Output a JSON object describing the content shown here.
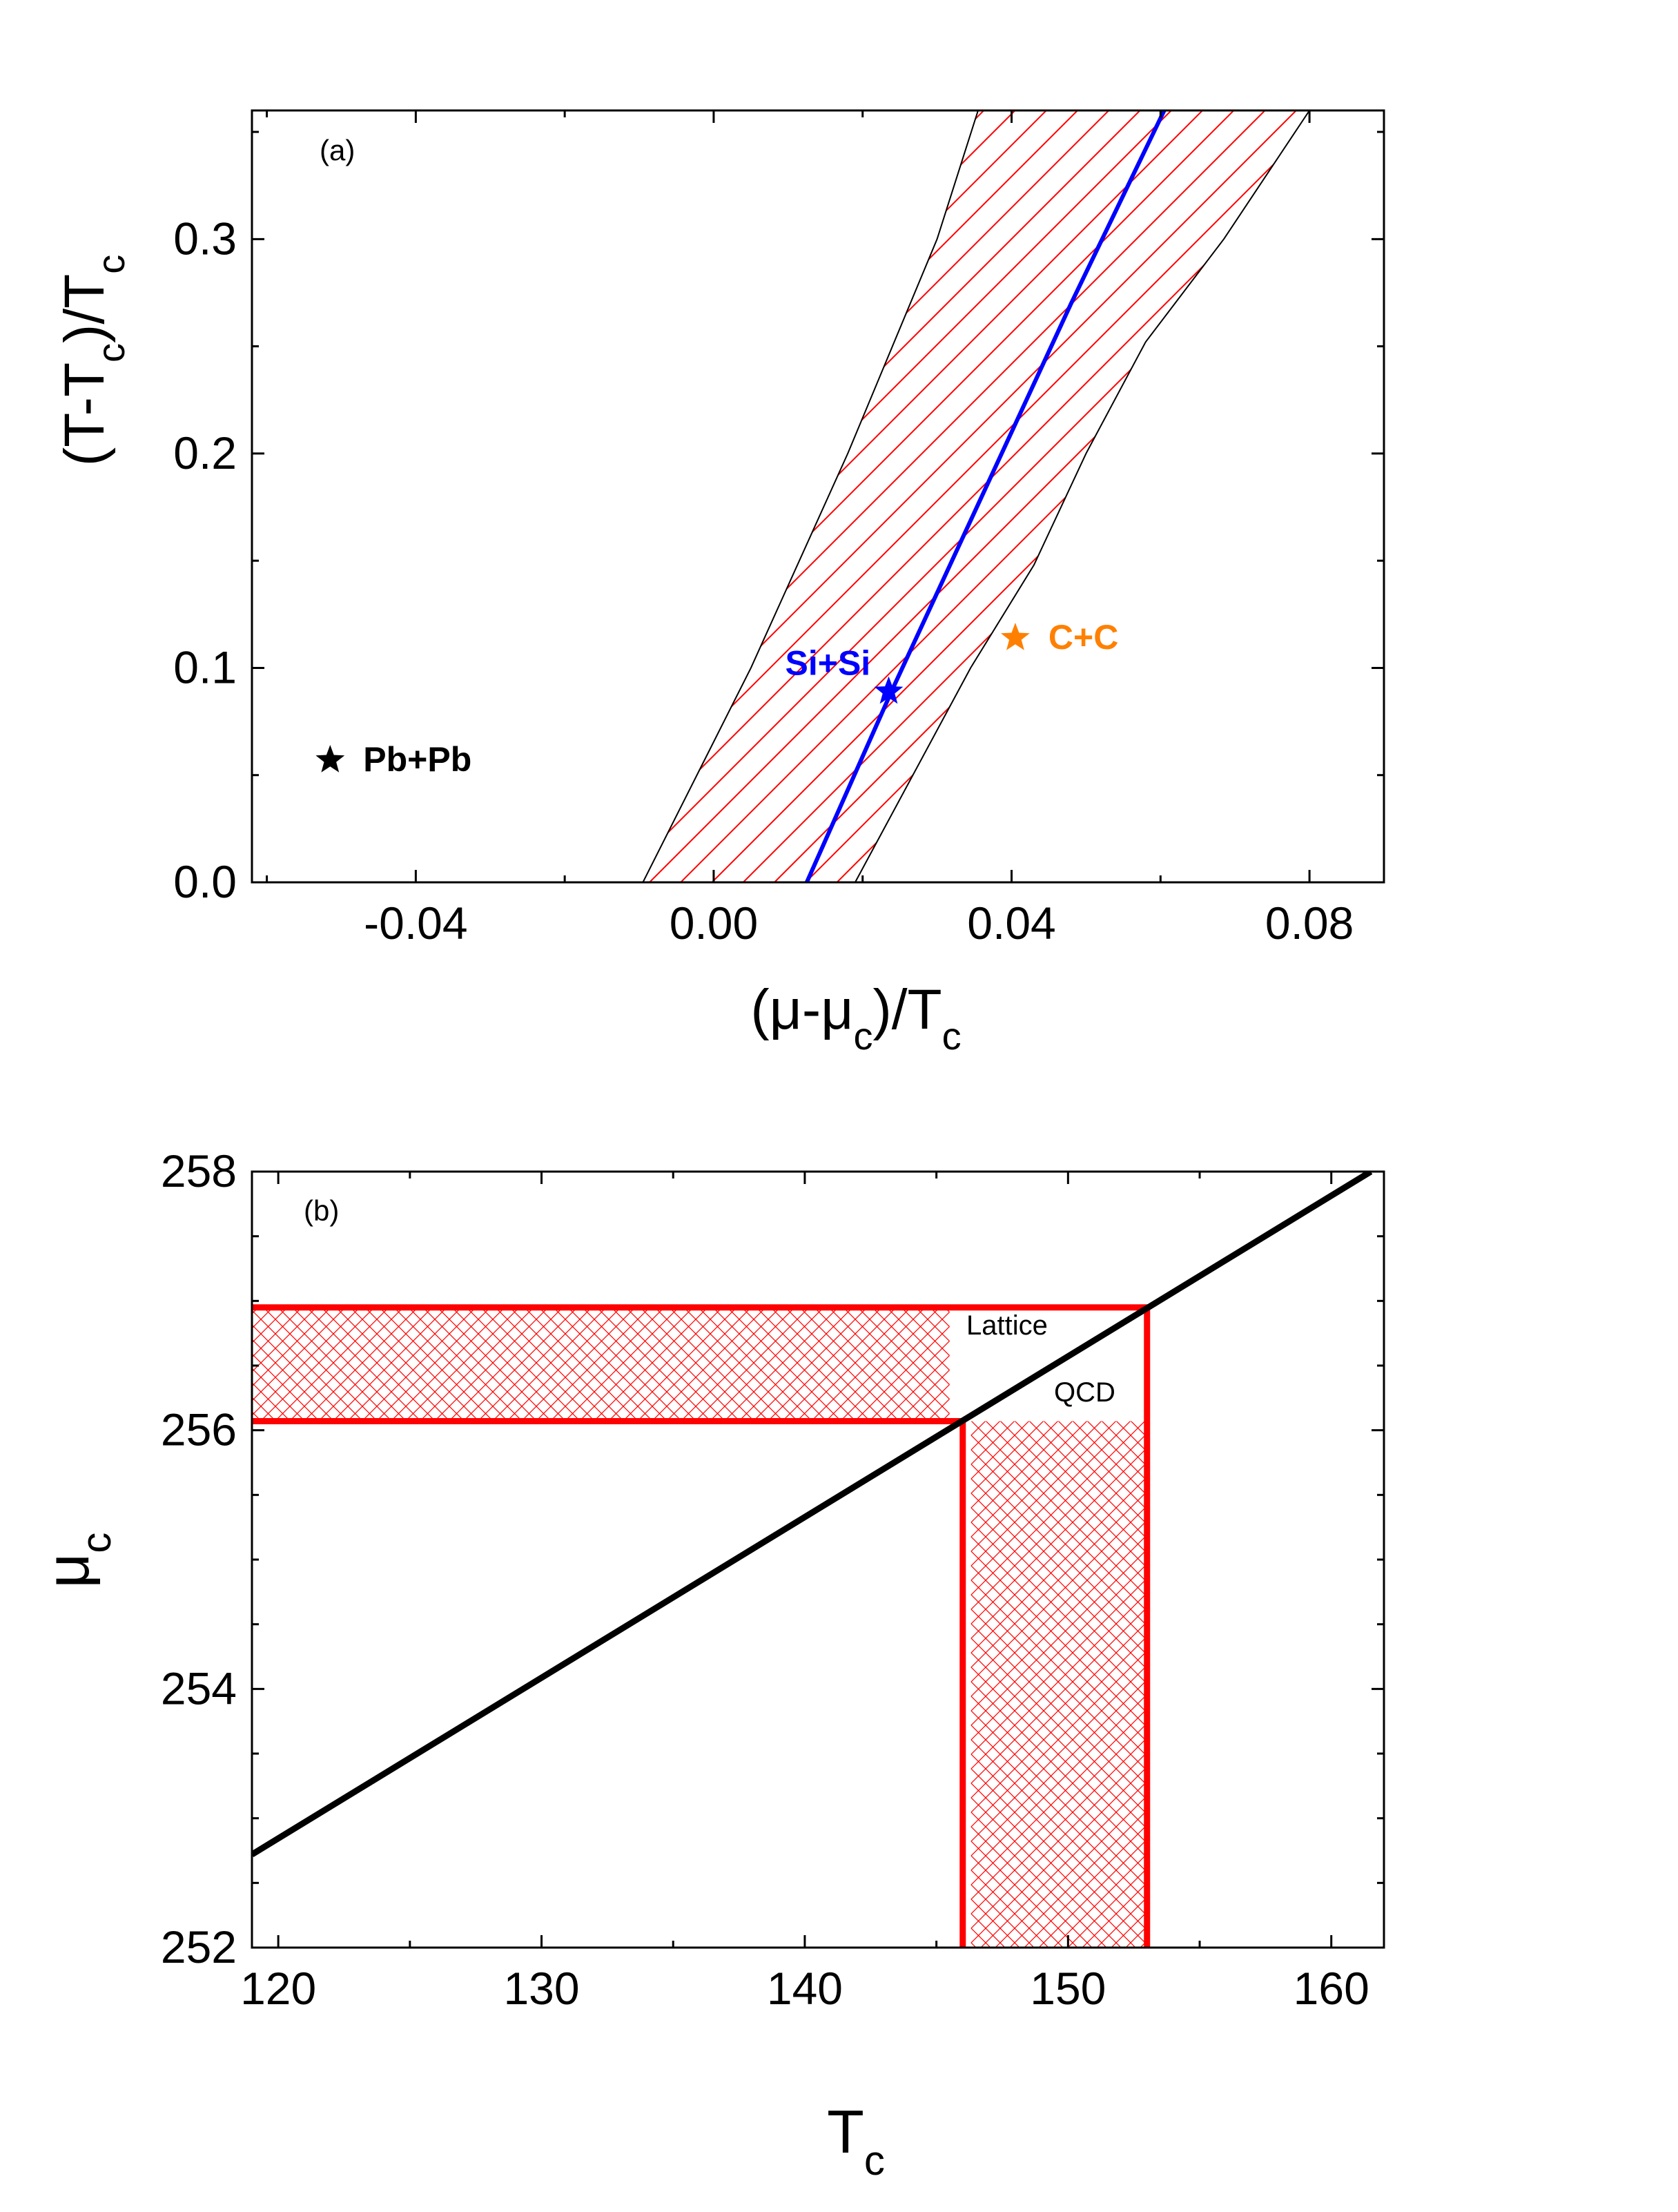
{
  "colors": {
    "red": "#ff0000",
    "blue": "#0000ff",
    "orange": "#ff8000",
    "black": "#000000"
  },
  "chart_data": [
    {
      "type": "line",
      "panel_label": "(a)",
      "xlabel": {
        "main": "(μ-μ",
        "sub": "c",
        "after": ")/T",
        "sub2": "c"
      },
      "ylabel": {
        "main": "(T-T",
        "sub": "c",
        "after": ")/T",
        "sub2": "c"
      },
      "xlim": [
        -0.062,
        0.09
      ],
      "ylim": [
        0,
        0.36
      ],
      "xticks": [
        -0.04,
        0.0,
        0.04,
        0.08
      ],
      "xtick_labels": [
        "-0.04",
        "0.00",
        "0.04",
        "0.08"
      ],
      "yticks": [
        0.0,
        0.1,
        0.2,
        0.3
      ],
      "ytick_labels": [
        "0.0",
        "0.1",
        "0.2",
        "0.3"
      ],
      "band": {
        "left": [
          [
            -0.0095,
            0.0
          ],
          [
            0.005,
            0.1
          ],
          [
            0.018,
            0.2
          ],
          [
            0.03,
            0.3
          ],
          [
            0.0355,
            0.36
          ]
        ],
        "right": [
          [
            0.019,
            0.0
          ],
          [
            0.0345,
            0.1
          ],
          [
            0.043,
            0.148
          ],
          [
            0.05,
            0.2
          ],
          [
            0.058,
            0.252
          ],
          [
            0.0685,
            0.3
          ],
          [
            0.08,
            0.36
          ]
        ],
        "fill": "diagonal hatch, red"
      },
      "series": [
        {
          "values": [
            [
              0.0125,
              0.0
            ],
            [
              0.024,
              0.09
            ],
            [
              0.036,
              0.18
            ],
            [
              0.048,
              0.27
            ],
            [
              0.0605,
              0.36
            ]
          ]
        }
      ],
      "points": [
        {
          "label": "Pb+Pb",
          "x": -0.0515,
          "y": 0.057,
          "color": "#000000"
        },
        {
          "label": "Si+Si",
          "x": 0.0235,
          "y": 0.089,
          "color": "#0000ff"
        },
        {
          "label": "C+C",
          "x": 0.0405,
          "y": 0.114,
          "color": "#ff8000"
        }
      ]
    },
    {
      "type": "line",
      "panel_label": "(b)",
      "xlabel": {
        "main": "T",
        "sub": "c"
      },
      "ylabel": {
        "main": "μ",
        "sub": "c"
      },
      "xlim": [
        119,
        162
      ],
      "ylim": [
        252,
        258
      ],
      "xticks": [
        120,
        130,
        140,
        150,
        160
      ],
      "xtick_labels": [
        "120",
        "130",
        "140",
        "150",
        "160"
      ],
      "yticks": [
        252,
        254,
        256,
        258
      ],
      "ytick_labels": [
        "252",
        "254",
        "256",
        "258"
      ],
      "series": [
        {
          "values": [
            [
              119,
              252.72
            ],
            [
              161.5,
              258.0
            ]
          ]
        }
      ],
      "lattice_qcd": {
        "label_line1": "Lattice",
        "label_line2": "QCD",
        "tc_range": [
          146,
          153
        ],
        "muc_range": [
          256.07,
          256.95
        ]
      }
    }
  ]
}
